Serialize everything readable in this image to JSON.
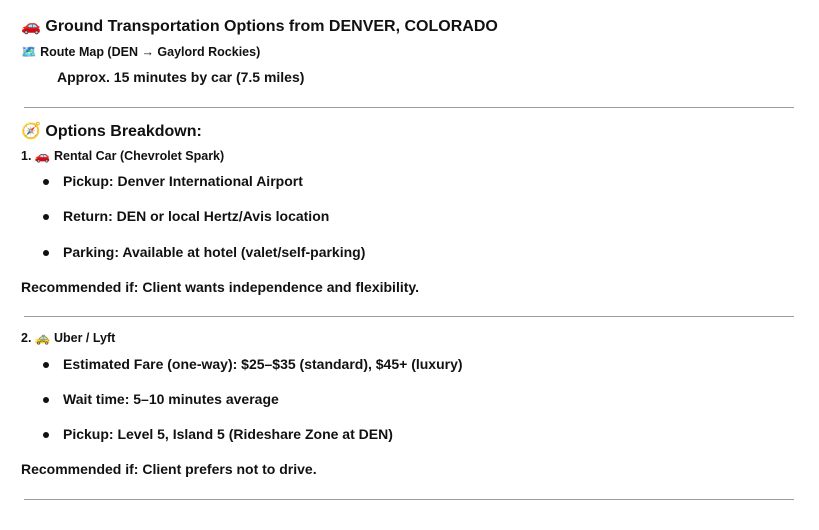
{
  "title": {
    "icon": "🚗",
    "text": "Ground Transportation Options from DENVER, COLORADO"
  },
  "route": {
    "icon": "🗺️",
    "text": "Route Map (DEN → Gaylord Rockies)",
    "detail": "Approx. 15 minutes by car (7.5 miles)"
  },
  "breakdown": {
    "icon": "🧭",
    "heading": "Options Breakdown:"
  },
  "options": [
    {
      "number": "1.",
      "icon": "🚗",
      "title": "Rental Car (Chevrolet Spark)",
      "bullets": [
        "Pickup: Denver International Airport",
        "Return: DEN or local Hertz/Avis location",
        "Parking: Available at hotel (valet/self-parking)"
      ],
      "recommendation": "Recommended if: Client wants independence and flexibility."
    },
    {
      "number": "2.",
      "icon": "🚕",
      "title": "Uber / Lyft",
      "bullets": [
        "Estimated Fare (one-way): $25–$35 (standard), $45+ (luxury)",
        "Wait time: 5–10 minutes average",
        "Pickup: Level 5, Island 5 (Rideshare Zone at DEN)"
      ],
      "recommendation": "Recommended if: Client prefers not to drive."
    }
  ]
}
